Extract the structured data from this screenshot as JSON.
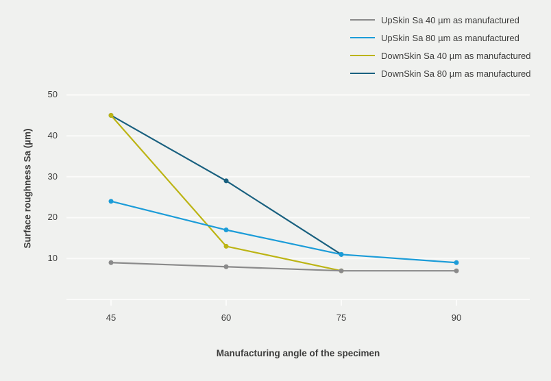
{
  "colors": {
    "background": "#f0f1ef",
    "gridline": "#fbfbfa",
    "text": "#3c3c3b"
  },
  "chart_data": {
    "type": "line",
    "title": "",
    "xlabel": "Manufacturing angle of the specimen",
    "ylabel": "Surface roughness Sa (µm)",
    "xticks": [
      45,
      60,
      75,
      90
    ],
    "yticks": [
      10,
      20,
      30,
      40,
      50
    ],
    "ylim": [
      0,
      50
    ],
    "grid": true,
    "legend_position": "top-right",
    "marker": "circle",
    "series": [
      {
        "name": "UpSkin Sa 40 µm as manufactured",
        "color": "#8a8a8a",
        "x": [
          45,
          60,
          75,
          90
        ],
        "y": [
          9,
          8,
          7,
          7
        ]
      },
      {
        "name": "UpSkin Sa 80 µm as manufactured",
        "color": "#1b9cd8",
        "x": [
          45,
          60,
          75,
          90
        ],
        "y": [
          24,
          17,
          11,
          9
        ]
      },
      {
        "name": "DownSkin Sa 40 µm as manufactured",
        "color": "#bcb414",
        "x": [
          45,
          60,
          75
        ],
        "y": [
          45,
          13,
          7
        ]
      },
      {
        "name": "DownSkin Sa 80 µm as manufactured",
        "color": "#19607f",
        "x": [
          45,
          60,
          75
        ],
        "y": [
          45,
          29,
          11
        ]
      }
    ]
  }
}
